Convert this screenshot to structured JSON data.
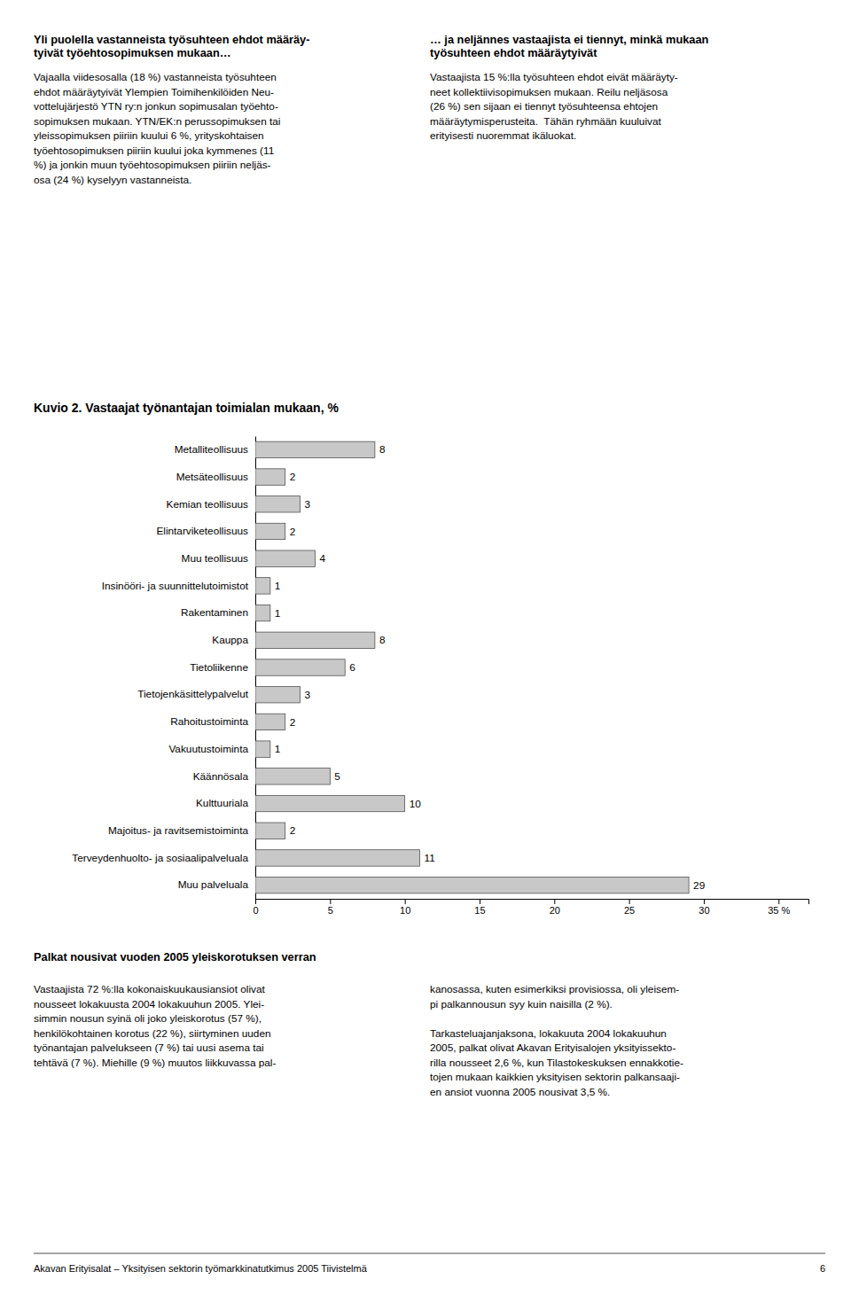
{
  "chart_data": {
    "type": "bar",
    "orientation": "horizontal",
    "title": "Kuvio 2. Vastaajat työnantajan toimialan mukaan, %",
    "categories": [
      "Metalliteollisuus",
      "Metsäteollisuus",
      "Kemian teollisuus",
      "Elintarviketeollisuus",
      "Muu teollisuus",
      "Insinööri- ja suunnittelutoimistot",
      "Rakentaminen",
      "Kauppa",
      "Tietoliikenne",
      "Tietojenkäsittelypalvelut",
      "Rahoitustoiminta",
      "Vakuutustoiminta",
      "Käännösala",
      "Kulttuuriala",
      "Majoitus- ja ravitsemistoiminta",
      "Terveydenhuolto- ja sosiaalipalveluala",
      "Muu palveluala"
    ],
    "values": [
      8,
      2,
      3,
      2,
      4,
      1,
      1,
      8,
      6,
      3,
      2,
      1,
      5,
      10,
      2,
      11,
      29
    ],
    "color": "#c8c8c8",
    "xlim": [
      0,
      37
    ],
    "xticks": [
      0,
      5,
      10,
      15,
      20,
      25,
      30,
      {
        "value": 35,
        "label": "35 %"
      }
    ],
    "data_labels": true
  },
  "header_left": [
    "Yli puolella vastanneista työsuhteen ehdot määräy-",
    "tyivät työehtosopimuksen mukaan…"
  ],
  "header_right": [
    "… ja neljännes vastaajista ei tiennyt, minkä mukaan",
    "työsuhteen ehdot määräytyivät"
  ],
  "body_left": [
    [
      "Vajaalla viidesosalla (18 %) vastanneista työsuhteen",
      "ehdot määräytyivät Ylempien Toimihenkilöiden Neu-",
      "vottelujärjestö YTN ry:n jonkun sopimusalan työehto-",
      "sopimuksen mukaan. YTN/EK:n perussopimuksen tai",
      "yleissopimuksen piiriin kuului 6 %, yrityskohtaisen",
      "työehtosopimuksen piiriin kuului joka kymmenes (11",
      "%) ja jonkin muun työehtosopimuksen piiriin neljäs-",
      "osa (24 %) kyselyyn vastanneista."
    ]
  ],
  "body_right": [
    [
      "Vastaajista 15 %:lla työsuhteen ehdot eivät määräyty-",
      "neet kollektiivisopimuksen mukaan. Reilu neljäsosa",
      "(26 %) sen sijaan ei tiennyt työsuhteensa ehtojen",
      "määräytymisperusteita.  Tähän ryhmään kuuluivat",
      "erityisesti nuoremmat ikäluokat."
    ]
  ],
  "bottom_title": "Palkat nousivat vuoden 2005 yleiskorotuksen verran",
  "bottom_left": [
    [
      "Vastaajista 72 %:lla kokonaiskuukausiansiot olivat",
      "nousseet lokakuusta 2004 lokakuuhun 2005. Ylei-",
      "simmin nousun syinä oli joko yleiskorotus (57 %),",
      "henkilökohtainen korotus (22 %), siirtyminen uuden",
      "työnantajan palvelukseen (7 %) tai uusi asema tai",
      "tehtävä (7 %). Miehille (9 %) muutos liikkuvassa pal-"
    ]
  ],
  "bottom_right": [
    [
      "kanosassa, kuten esimerkiksi provisiossa, oli yleisem-",
      "pi palkannousun syy kuin naisilla (2 %)."
    ],
    [
      "Tarkasteluajanjaksona, lokakuuta 2004 lokakuuhun",
      "2005, palkat olivat Akavan Erityisalojen yksityissekto-",
      "rilla nousseet 2,6 %, kun Tilastokeskuksen ennakkotie-",
      "tojen mukaan kaikkien yksityisen sektorin palkansaaji-",
      "en ansiot vuonna 2005 nousivat 3,5 %."
    ]
  ],
  "footer_left": "Akavan Erityisalat – Yksityisen sektorin työmarkkinatutkimus 2005 Tiivistelmä",
  "footer_right": "6"
}
